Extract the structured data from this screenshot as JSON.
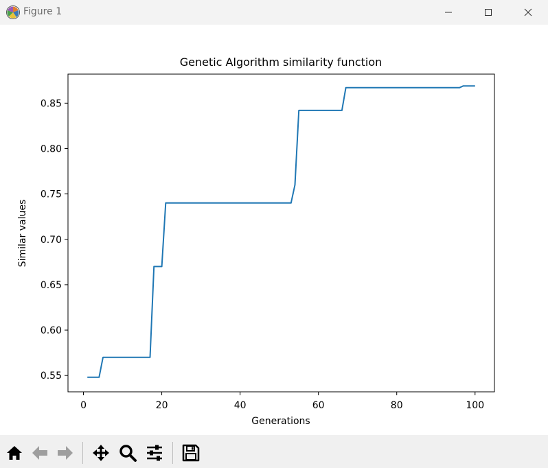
{
  "window": {
    "title": "Figure 1",
    "icons": {
      "app": "matplotlib-icon",
      "minimize": "minimize-icon",
      "maximize": "maximize-icon",
      "close": "close-icon"
    }
  },
  "toolbar": {
    "buttons": [
      {
        "name": "home",
        "icon": "home-icon"
      },
      {
        "name": "back",
        "icon": "arrow-left-icon"
      },
      {
        "name": "forward",
        "icon": "arrow-right-icon"
      },
      {
        "name": "pan",
        "icon": "move-icon"
      },
      {
        "name": "zoom",
        "icon": "magnifier-icon"
      },
      {
        "name": "configure",
        "icon": "sliders-icon"
      },
      {
        "name": "save",
        "icon": "floppy-disk-icon"
      }
    ]
  },
  "chart_data": {
    "type": "line",
    "title": "Genetic Algorithm similarity function",
    "xlabel": "Generations",
    "ylabel": "Similar values",
    "xlim": [
      -3.95,
      104.95
    ],
    "ylim": [
      0.532,
      0.882
    ],
    "xticks": [
      0,
      20,
      40,
      60,
      80,
      100
    ],
    "yticks": [
      0.55,
      0.6,
      0.65,
      0.7,
      0.75,
      0.8,
      0.85
    ],
    "ytick_labels": [
      "0.55",
      "0.60",
      "0.65",
      "0.70",
      "0.75",
      "0.80",
      "0.85"
    ],
    "grid": false,
    "line_color": "#1f77b4",
    "series": [
      {
        "x": [
          1,
          4,
          5,
          17,
          18,
          20,
          21,
          53,
          54,
          55,
          66,
          67,
          96,
          97,
          100
        ],
        "y": [
          0.548,
          0.548,
          0.57,
          0.57,
          0.67,
          0.67,
          0.74,
          0.74,
          0.76,
          0.842,
          0.842,
          0.867,
          0.867,
          0.869,
          0.869
        ]
      }
    ]
  }
}
